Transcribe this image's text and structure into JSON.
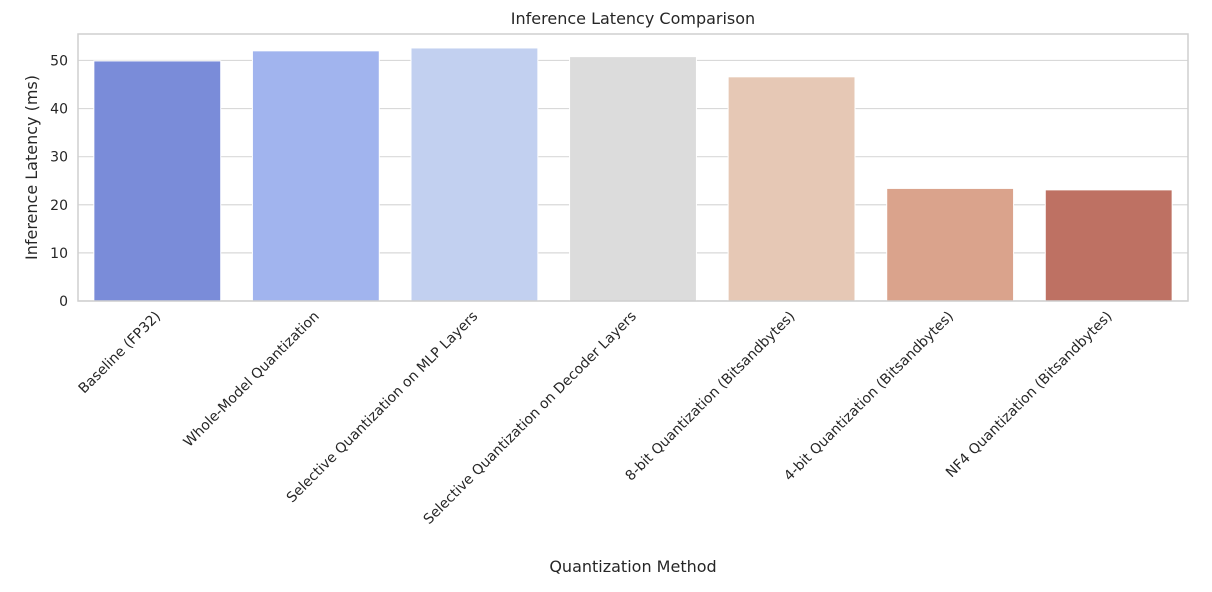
{
  "chart_data": {
    "type": "bar",
    "title": "Inference Latency Comparison",
    "xlabel": "Quantization Method",
    "ylabel": "Inference Latency (ms)",
    "categories": [
      "Baseline (FP32)",
      "Whole-Model Quantization",
      "Selective Quantization on MLP Layers",
      "Selective Quantization on Decoder Layers",
      "8-bit Quantization (Bitsandbytes)",
      "4-bit Quantization (Bitsandbytes)",
      "NF4 Quantization (Bitsandbytes)"
    ],
    "values": [
      49.9,
      52.0,
      52.6,
      50.8,
      46.6,
      23.4,
      23.1
    ],
    "colors": [
      "#7a8cd9",
      "#a1b4ee",
      "#c2d0f0",
      "#dcdcdc",
      "#e6c8b5",
      "#daa38c",
      "#be7163"
    ],
    "ylim": [
      0,
      55.5
    ],
    "yticks": [
      0,
      10,
      20,
      30,
      40,
      50
    ],
    "grid": true,
    "style": {
      "background": "#ffffff",
      "grid_color": "#d9d9d9",
      "frame_color": "#cfcfcf",
      "text_color": "#262626"
    }
  }
}
